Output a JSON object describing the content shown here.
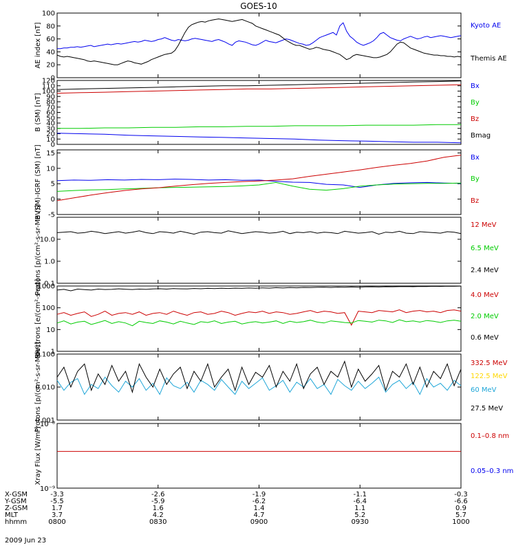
{
  "title": "GOES-10",
  "date_label": "2009 Jun 23",
  "colors": {
    "black": "#000000",
    "blue": "#0000ee",
    "red": "#cc0000",
    "green": "#00cc00",
    "yellow": "#ffd700",
    "cyan": "#1fa6d8"
  },
  "orbit": {
    "rows": [
      {
        "label": "X-GSM",
        "values": [
          "-3.3",
          "-2.6",
          "-1.9",
          "-1.1",
          "-0.3"
        ]
      },
      {
        "label": "Y-GSM",
        "values": [
          "-5.5",
          "-5.9",
          "-6.2",
          "-6.4",
          "-6.6"
        ]
      },
      {
        "label": "Z-GSM",
        "values": [
          "1.7",
          "1.6",
          "1.4",
          "1.1",
          "0.9"
        ]
      },
      {
        "label": "MLT",
        "values": [
          "3.7",
          "4.2",
          "4.7",
          "5.2",
          "5.7"
        ]
      },
      {
        "label": "hhmm",
        "values": [
          "0800",
          "0830",
          "0900",
          "0930",
          "1000"
        ]
      }
    ]
  },
  "chart_data": [
    {
      "type": "line",
      "ylabel": "AE index [nT]",
      "ylim": [
        0,
        100
      ],
      "scale": "linear",
      "yticks": [
        0,
        20,
        40,
        60,
        80,
        100
      ],
      "x_range": [
        "08:00",
        "10:00"
      ],
      "series": [
        {
          "name": "Kyoto AE",
          "color": "blue",
          "values": [
            45,
            45,
            46,
            46,
            47,
            47,
            48,
            47,
            48,
            49,
            50,
            48,
            49,
            50,
            51,
            52,
            51,
            52,
            53,
            52,
            53,
            54,
            55,
            56,
            55,
            56,
            58,
            57,
            56,
            57,
            59,
            60,
            62,
            60,
            58,
            57,
            59,
            58,
            57,
            58,
            60,
            61,
            60,
            59,
            58,
            57,
            56,
            58,
            59,
            57,
            55,
            52,
            50,
            55,
            57,
            56,
            55,
            53,
            51,
            50,
            52,
            55,
            58,
            56,
            55,
            54,
            56,
            58,
            60,
            59,
            57,
            55,
            53,
            52,
            50,
            51,
            54,
            58,
            62,
            64,
            66,
            68,
            70,
            66,
            80,
            85,
            72,
            64,
            60,
            55,
            52,
            50,
            52,
            54,
            57,
            62,
            68,
            70,
            66,
            62,
            60,
            58,
            57,
            60,
            62,
            64,
            62,
            60,
            61,
            63,
            64,
            62,
            63,
            64,
            65,
            64,
            63,
            62,
            63,
            64,
            65
          ]
        },
        {
          "name": "Themis AE",
          "color": "black",
          "values": [
            35,
            33,
            32,
            33,
            32,
            31,
            30,
            29,
            28,
            26,
            25,
            26,
            25,
            24,
            23,
            22,
            21,
            20,
            20,
            22,
            24,
            26,
            25,
            23,
            22,
            21,
            23,
            25,
            28,
            30,
            32,
            34,
            36,
            37,
            38,
            42,
            50,
            60,
            70,
            78,
            82,
            84,
            86,
            87,
            86,
            88,
            89,
            90,
            91,
            90,
            89,
            88,
            87,
            88,
            89,
            90,
            88,
            86,
            84,
            80,
            78,
            76,
            74,
            72,
            70,
            68,
            66,
            62,
            58,
            55,
            52,
            50,
            50,
            48,
            46,
            44,
            45,
            47,
            46,
            44,
            43,
            42,
            40,
            38,
            36,
            32,
            28,
            30,
            34,
            36,
            35,
            34,
            33,
            32,
            31,
            31,
            32,
            34,
            36,
            40,
            46,
            52,
            55,
            54,
            50,
            46,
            44,
            42,
            40,
            38,
            37,
            36,
            35,
            35,
            34,
            34,
            33,
            33,
            32,
            33,
            32
          ]
        }
      ]
    },
    {
      "type": "line",
      "ylabel": "B (SM) [nT]",
      "ylim": [
        0,
        120
      ],
      "scale": "linear",
      "yticks": [
        0,
        10,
        20,
        30,
        40,
        50,
        60,
        70,
        80,
        90,
        100,
        110,
        120
      ],
      "series": [
        {
          "name": "Bx",
          "color": "blue",
          "values": [
            21,
            20,
            19,
            17,
            16,
            15,
            14,
            13,
            12,
            11,
            10,
            8,
            7,
            6,
            5,
            4,
            4,
            3
          ]
        },
        {
          "name": "By",
          "color": "green",
          "values": [
            30,
            30,
            31,
            31,
            32,
            32,
            33,
            33,
            34,
            34,
            35,
            35,
            35,
            36,
            36,
            36,
            37,
            37
          ]
        },
        {
          "name": "Bz",
          "color": "red",
          "values": [
            96,
            97,
            98,
            99,
            100,
            101,
            102,
            103,
            104,
            104,
            105,
            106,
            107,
            108,
            109,
            110,
            111,
            112
          ]
        },
        {
          "name": "Bmag",
          "color": "black",
          "values": [
            103,
            104,
            105,
            106,
            107,
            108,
            109,
            110,
            110,
            111,
            112,
            113,
            114,
            115,
            116,
            117,
            118,
            119
          ]
        }
      ]
    },
    {
      "type": "line",
      "ylabel": "B (SM)-IGRF (SM) [nT]",
      "ylim": [
        -5,
        16
      ],
      "scale": "linear",
      "yticks": [
        -5,
        0,
        5,
        10,
        15
      ],
      "series": [
        {
          "name": "Bx",
          "color": "blue",
          "values": [
            6,
            6.2,
            6.1,
            6.3,
            6.2,
            6.4,
            6.3,
            6.5,
            6.4,
            6.2,
            6.3,
            6.1,
            6.2,
            5.8,
            5.5,
            5.4,
            4.8,
            4.6,
            3.8,
            4.6,
            5.1,
            5.3,
            5.4,
            5.2,
            5.1
          ]
        },
        {
          "name": "By",
          "color": "green",
          "values": [
            2.5,
            2.8,
            3,
            3.1,
            3.3,
            3.5,
            3.7,
            3.8,
            3.9,
            4,
            4.1,
            4.3,
            4.6,
            5.4,
            4.2,
            3.2,
            2.9,
            3.4,
            4.2,
            4.6,
            4.9,
            5,
            5.1,
            5.1,
            5.2
          ]
        },
        {
          "name": "Bz",
          "color": "red",
          "values": [
            -0.5,
            0.4,
            1.3,
            2.1,
            2.8,
            3.3,
            3.7,
            4.2,
            4.7,
            5.1,
            5.4,
            5.7,
            5.9,
            6.2,
            6.6,
            7.4,
            8.1,
            8.8,
            9.5,
            10.3,
            11,
            11.6,
            12.4,
            13.6,
            14.3
          ]
        }
      ]
    },
    {
      "type": "line",
      "ylabel": "Protons [p/(cm²-s-sr-MeV)]",
      "ylim": [
        0.1,
        100
      ],
      "scale": "log",
      "yticks": [
        0.1,
        1.0,
        10.0
      ],
      "yticklabels": [
        "0.1",
        "1.0",
        "10.0"
      ],
      "series": [
        {
          "name": "12 MeV",
          "color": "red",
          "values": []
        },
        {
          "name": "6.5 MeV",
          "color": "green",
          "values": []
        },
        {
          "name": "2.4 MeV",
          "color": "black",
          "values": [
            20,
            21,
            22,
            19,
            20,
            23,
            21,
            18,
            20,
            22,
            19,
            21,
            24,
            20,
            18,
            22,
            21,
            19,
            23,
            20,
            17,
            21,
            22,
            20,
            19,
            24,
            21,
            18,
            20,
            22,
            21,
            19,
            20,
            23,
            18,
            21,
            20,
            22,
            19,
            21,
            20,
            18,
            23,
            21,
            19,
            20,
            22,
            17,
            21,
            20,
            23,
            19,
            18,
            22,
            21,
            20,
            19,
            22,
            21,
            18
          ]
        }
      ]
    },
    {
      "type": "line",
      "ylabel": "Electrons [e/(cm²-s-sr)]",
      "ylim": [
        1,
        1000
      ],
      "scale": "log",
      "yticks": [
        1,
        10,
        100,
        1000
      ],
      "yticklabels": [
        "1",
        "10",
        "100",
        "1000"
      ],
      "series": [
        {
          "name": "4.0 MeV",
          "color": "red",
          "values": [
            50,
            60,
            45,
            55,
            65,
            40,
            50,
            70,
            45,
            55,
            60,
            50,
            65,
            45,
            55,
            60,
            50,
            70,
            55,
            45,
            60,
            65,
            50,
            55,
            70,
            60,
            45,
            55,
            65,
            60,
            70,
            55,
            65,
            60,
            50,
            55,
            65,
            75,
            60,
            70,
            65,
            55,
            60,
            16,
            70,
            65,
            60,
            75,
            70,
            65,
            80,
            60,
            70,
            75,
            65,
            70,
            60,
            75,
            80,
            70
          ]
        },
        {
          "name": "2.0 MeV",
          "color": "green",
          "values": [
            20,
            25,
            18,
            22,
            24,
            17,
            21,
            26,
            19,
            23,
            20,
            15,
            24,
            21,
            19,
            25,
            22,
            18,
            24,
            20,
            17,
            23,
            21,
            25,
            19,
            22,
            24,
            18,
            21,
            23,
            20,
            22,
            25,
            19,
            24,
            21,
            23,
            27,
            22,
            20,
            25,
            23,
            21,
            20,
            26,
            24,
            22,
            27,
            25,
            21,
            28,
            23,
            25,
            22,
            26,
            24,
            21,
            25,
            27,
            24
          ]
        },
        {
          "name": "0.6 MeV",
          "color": "black",
          "values": [
            650,
            700,
            600,
            720,
            680,
            650,
            720,
            690,
            700,
            740,
            710,
            690,
            720,
            700,
            730,
            750,
            720,
            760,
            740,
            730,
            770,
            750,
            780,
            760,
            790,
            770,
            800,
            780,
            810,
            790,
            820,
            800,
            840,
            810,
            850,
            830,
            860,
            850,
            870,
            880,
            860,
            890,
            870,
            900,
            880,
            910,
            920,
            900,
            930,
            920,
            940,
            950,
            930,
            960,
            950,
            970,
            960,
            980,
            970,
            990
          ]
        }
      ]
    },
    {
      "type": "line",
      "ylabel": "Protons [p/(cm²-s-sr-MeV)]",
      "ylim": [
        0.001,
        0.1
      ],
      "scale": "log",
      "yticks": [
        0.001,
        0.01,
        0.1
      ],
      "yticklabels": [
        "0.001",
        "0.010",
        "0.100"
      ],
      "series": [
        {
          "name": "332.5 MeV",
          "color": "red",
          "values": []
        },
        {
          "name": "122.5 MeV",
          "color": "yellow",
          "values": []
        },
        {
          "name": "60 MeV",
          "color": "cyan",
          "values": [
            0.016,
            0.008,
            0.014,
            0.018,
            0.006,
            0.012,
            0.009,
            0.02,
            0.011,
            0.007,
            0.015,
            0.01,
            0.018,
            0.008,
            0.013,
            0.006,
            0.019,
            0.011,
            0.009,
            0.014,
            0.007,
            0.016,
            0.012,
            0.008,
            0.017,
            0.01,
            0.006,
            0.015,
            0.009,
            0.013,
            0.019,
            0.008,
            0.011,
            0.016,
            0.007,
            0.014,
            0.01,
            0.018,
            0.009,
            0.012,
            0.006,
            0.017,
            0.011,
            0.008,
            0.015,
            0.009,
            0.013,
            0.02,
            0.007,
            0.012,
            0.016,
            0.009,
            0.014,
            0.006,
            0.018,
            0.01,
            0.013,
            0.008,
            0.016,
            0.011
          ]
        },
        {
          "name": "27.5 MeV",
          "color": "black",
          "values": [
            0.02,
            0.04,
            0.01,
            0.03,
            0.05,
            0.008,
            0.025,
            0.012,
            0.045,
            0.015,
            0.03,
            0.007,
            0.05,
            0.02,
            0.01,
            0.035,
            0.012,
            0.025,
            0.04,
            0.009,
            0.03,
            0.015,
            0.05,
            0.01,
            0.02,
            0.035,
            0.008,
            0.04,
            0.012,
            0.028,
            0.02,
            0.045,
            0.01,
            0.03,
            0.015,
            0.05,
            0.009,
            0.025,
            0.04,
            0.012,
            0.03,
            0.02,
            0.06,
            0.01,
            0.035,
            0.015,
            0.025,
            0.045,
            0.008,
            0.03,
            0.02,
            0.05,
            0.012,
            0.04,
            0.01,
            0.03,
            0.018,
            0.05,
            0.011,
            0.035
          ]
        }
      ]
    },
    {
      "type": "line",
      "ylabel": "Xray Flux [W/m²]",
      "ylim": [
        1e-09,
        1e-08
      ],
      "scale": "log",
      "yticklabels": [
        "10⁻⁹",
        "10⁻⁸"
      ],
      "series": [
        {
          "name": "0.1–0.8 nm",
          "color": "red",
          "values": [
            3.7e-09,
            3.7e-09
          ]
        },
        {
          "name": "0.05–0.3 nm",
          "color": "blue",
          "values": []
        }
      ]
    }
  ]
}
